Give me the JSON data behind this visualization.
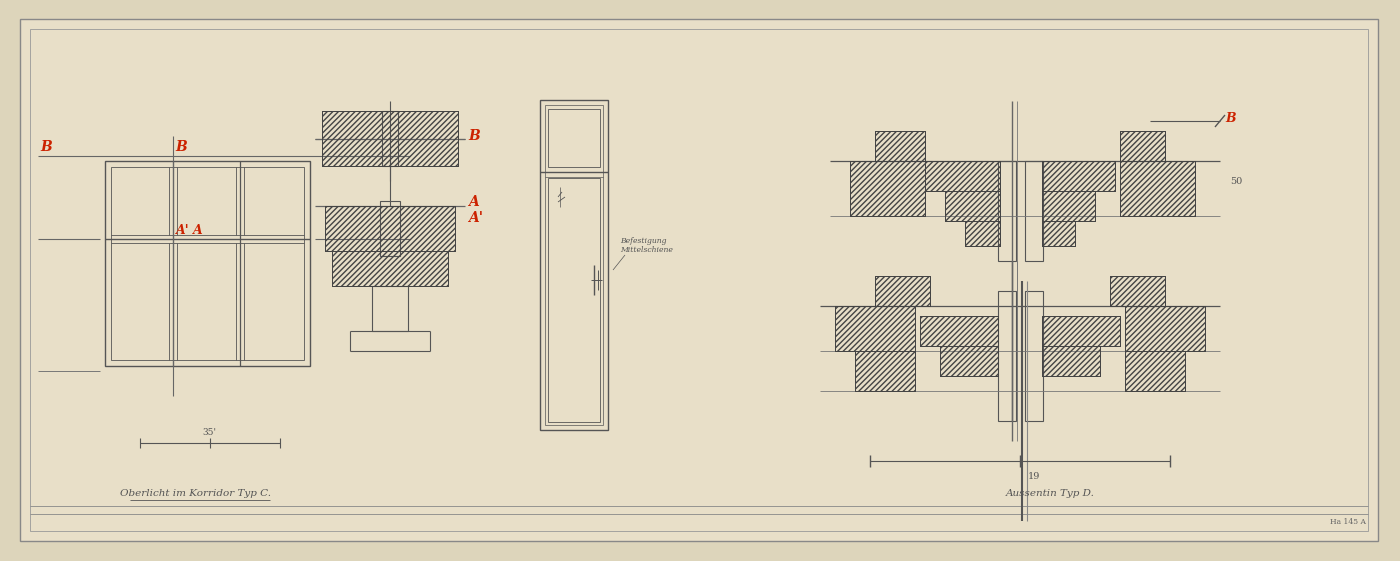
{
  "bg_color": "#ddd5bb",
  "paper_color": "#e8dfc8",
  "line_color": "#555555",
  "hatch_color": "#444444",
  "red_color": "#cc2200",
  "title_left": "Oberlicht im Korridor Typ C.",
  "title_right": "Aussentin Typ D.",
  "dim_50": "50",
  "dim_19": "19",
  "dim_35": "35'",
  "label_B": "B",
  "label_A": "A",
  "label_Ap": "A'",
  "label_B2": "B",
  "label_A2": "A",
  "label_A2p": "A'",
  "note_door": "Befestigung\nMittelschiene",
  "catalog": "Ha 145 A"
}
